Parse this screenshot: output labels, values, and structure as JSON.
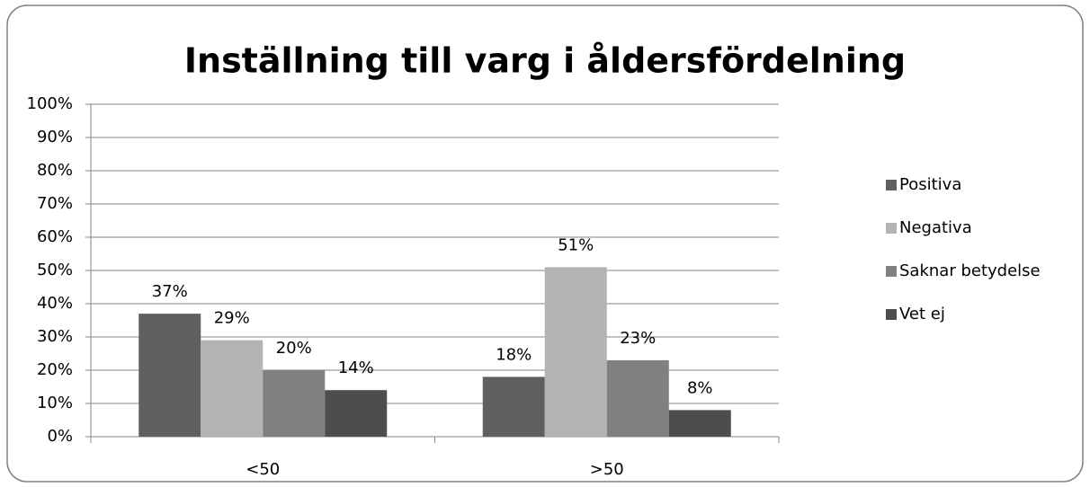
{
  "chart_data": {
    "type": "bar",
    "title": "Inställning till varg i åldersfördelning",
    "categories": [
      "<50",
      ">50"
    ],
    "series": [
      {
        "name": "Positiva",
        "color": "#606060",
        "values": [
          37,
          18
        ],
        "value_labels": [
          "37%",
          "18%"
        ]
      },
      {
        "name": "Negativa",
        "color": "#b3b3b3",
        "values": [
          29,
          51
        ],
        "value_labels": [
          "29%",
          "51%"
        ]
      },
      {
        "name": "Saknar betydelse",
        "color": "#808080",
        "values": [
          20,
          23
        ],
        "value_labels": [
          "20%",
          "23%"
        ]
      },
      {
        "name": "Vet ej",
        "color": "#4d4d4d",
        "values": [
          14,
          8
        ],
        "value_labels": [
          "14%",
          "8%"
        ]
      }
    ],
    "ylim": [
      0,
      100
    ],
    "yticks": [
      {
        "value": 0,
        "label": "0%"
      },
      {
        "value": 10,
        "label": "10%"
      },
      {
        "value": 20,
        "label": "20%"
      },
      {
        "value": 30,
        "label": "30%"
      },
      {
        "value": 40,
        "label": "40%"
      },
      {
        "value": 50,
        "label": "50%"
      },
      {
        "value": 60,
        "label": "60%"
      },
      {
        "value": 70,
        "label": "70%"
      },
      {
        "value": 80,
        "label": "80%"
      },
      {
        "value": 90,
        "label": "90%"
      },
      {
        "value": 100,
        "label": "100%"
      }
    ],
    "grid": true,
    "legend": "right"
  }
}
